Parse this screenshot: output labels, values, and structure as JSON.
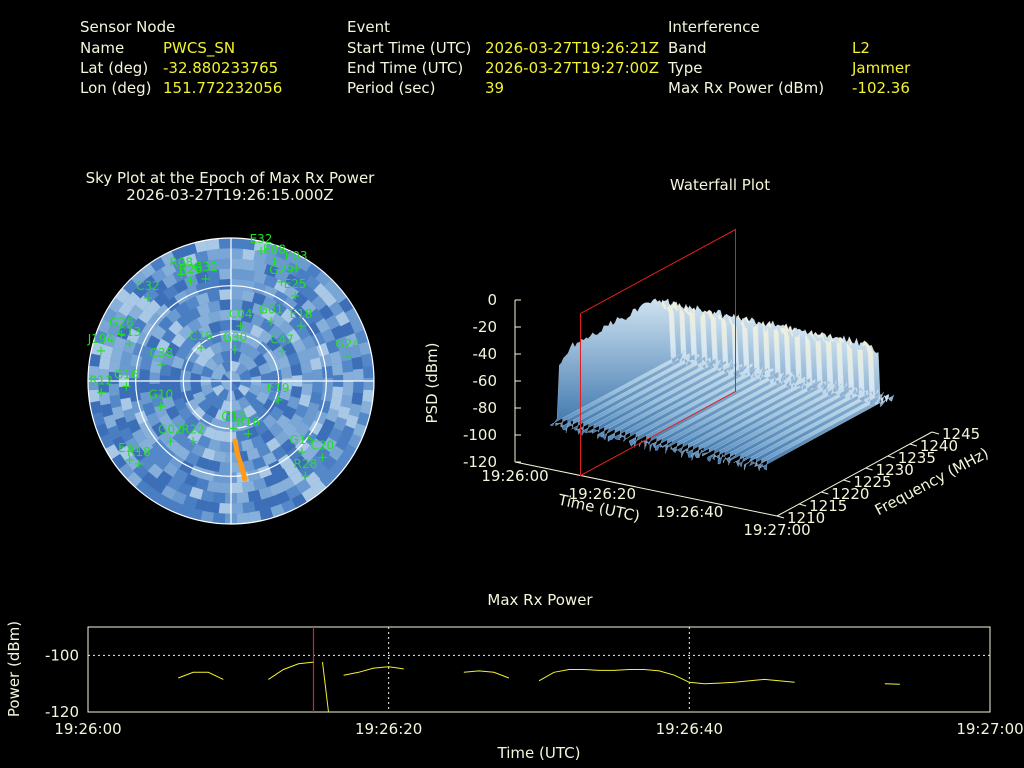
{
  "header": {
    "sensor": {
      "title": "Sensor Node",
      "name_label": "Name",
      "name_value": "PWCS_SN",
      "lat_label": "Lat (deg)",
      "lat_value": "-32.880233765",
      "lon_label": "Lon (deg)",
      "lon_value": "151.772232056"
    },
    "event": {
      "title": "Event",
      "start_label": "Start Time (UTC)",
      "start_value": "2026-03-27T19:26:21Z",
      "end_label": "End Time (UTC)",
      "end_value": "2026-03-27T19:27:00Z",
      "period_label": "Period (sec)",
      "period_value": "39"
    },
    "interference": {
      "title": "Interference",
      "band_label": "Band",
      "band_value": "L2",
      "type_label": "Type",
      "type_value": "Jammer",
      "power_label": "Max Rx Power (dBm)",
      "power_value": "-102.36"
    }
  },
  "colors": {
    "label": "#f5f5dc",
    "value": "#f2f230",
    "satellite": "#22e022",
    "track": "#ff9a1a",
    "marker": "#e02020",
    "power_line": "#f2f230"
  },
  "chart_data": [
    {
      "type": "scatter",
      "title": "Sky Plot at the Epoch of Max Rx Power",
      "subtitle": "2026-03-27T19:26:15.000Z",
      "grid": true,
      "satellites": [
        {
          "id": "E32",
          "az": 13,
          "el": 6
        },
        {
          "id": "E08",
          "az": 20,
          "el": 10
        },
        {
          "id": "E03",
          "az": 30,
          "el": 8
        },
        {
          "id": "G29",
          "az": 27,
          "el": 20
        },
        {
          "id": "E25",
          "az": 37,
          "el": 23
        },
        {
          "id": "G24",
          "az": 78,
          "el": 15
        },
        {
          "id": "G01",
          "az": 34,
          "el": 45
        },
        {
          "id": "E18",
          "az": 52,
          "el": 34
        },
        {
          "id": "C47",
          "az": 60,
          "el": 53
        },
        {
          "id": "R08",
          "az": 335,
          "el": 16
        },
        {
          "id": "R26",
          "az": 338,
          "el": 22
        },
        {
          "id": "G32",
          "az": 346,
          "el": 24
        },
        {
          "id": "C32",
          "az": 315,
          "el": 16
        },
        {
          "id": "G26",
          "az": 293,
          "el": 15
        },
        {
          "id": "C13",
          "az": 290,
          "el": 22
        },
        {
          "id": "J194",
          "az": 283,
          "el": 6
        },
        {
          "id": "C38",
          "az": 283,
          "el": 45
        },
        {
          "id": "G16",
          "az": 267,
          "el": 24
        },
        {
          "id": "R12",
          "az": 265,
          "el": 8
        },
        {
          "id": "G10",
          "az": 250,
          "el": 43
        },
        {
          "id": "G02",
          "az": 225,
          "el": 36
        },
        {
          "id": "R22",
          "az": 212,
          "el": 45
        },
        {
          "id": "G13",
          "az": 177,
          "el": 60
        },
        {
          "id": "R16",
          "az": 162,
          "el": 55
        },
        {
          "id": "G15",
          "az": 135,
          "el": 27
        },
        {
          "id": "C20",
          "az": 130,
          "el": 15
        },
        {
          "id": "R28",
          "az": 142,
          "el": 14
        },
        {
          "id": "R18",
          "az": 228,
          "el": 12
        },
        {
          "id": "E31",
          "az": 232,
          "el": 9
        },
        {
          "id": "C04",
          "az": 10,
          "el": 55
        },
        {
          "id": "E19",
          "az": 112,
          "el": 58
        },
        {
          "id": "G30",
          "az": 7,
          "el": 70
        },
        {
          "id": "C19",
          "az": 318,
          "el": 62
        }
      ],
      "track": [
        {
          "az": 176,
          "el": 52
        },
        {
          "az": 175,
          "el": 44
        },
        {
          "az": 173,
          "el": 36
        },
        {
          "az": 172,
          "el": 28
        }
      ]
    },
    {
      "type": "area",
      "title": "Waterfall Plot",
      "xlabel": "Time (UTC)",
      "ylabel": "Frequency (MHz)",
      "zlabel": "PSD (dBm)",
      "x_ticks": [
        "19:26:00",
        "19:26:20",
        "19:26:40",
        "19:27:00"
      ],
      "y_ticks": [
        "1210",
        "1215",
        "1220",
        "1225",
        "1230",
        "1235",
        "1240",
        "1245"
      ],
      "z_ticks": [
        "0",
        "-20",
        "-40",
        "-60",
        "-80",
        "-100",
        "-120"
      ],
      "zlim": [
        -120,
        0
      ],
      "freq_range": [
        1210,
        1245
      ],
      "jam_band": [
        1215,
        1240
      ],
      "jam_level": -45,
      "noise_floor": -100,
      "marker_time": "19:26:15"
    },
    {
      "type": "line",
      "title": "Max Rx Power",
      "xlabel": "Time (UTC)",
      "ylabel": "Power (dBm)",
      "ylim": [
        -120,
        -90
      ],
      "y_ticks": [
        "-100",
        "-120"
      ],
      "x_ticks": [
        "19:26:00",
        "19:26:20",
        "19:26:40",
        "19:27:00"
      ],
      "xlim_sec": [
        0,
        60
      ],
      "grid": true,
      "marker_sec": 15,
      "segments": [
        [
          [
            6,
            -108
          ],
          [
            7,
            -106
          ],
          [
            8,
            -106
          ],
          [
            9,
            -108.5
          ]
        ],
        [
          [
            12,
            -108.5
          ],
          [
            13,
            -105
          ],
          [
            14,
            -103
          ],
          [
            15,
            -102.4
          ]
        ],
        [
          [
            15.6,
            -102.4
          ],
          [
            16,
            -120
          ]
        ],
        [
          [
            17,
            -107
          ],
          [
            18,
            -106
          ],
          [
            19,
            -104.5
          ],
          [
            20,
            -104
          ],
          [
            21,
            -104.8
          ]
        ],
        [
          [
            25,
            -106
          ],
          [
            26,
            -105.5
          ],
          [
            27,
            -106
          ],
          [
            28,
            -108
          ]
        ],
        [
          [
            30,
            -109
          ],
          [
            31,
            -106
          ],
          [
            32,
            -105
          ],
          [
            33,
            -105
          ],
          [
            34,
            -105.3
          ],
          [
            35,
            -105.3
          ],
          [
            36,
            -105
          ],
          [
            37,
            -105
          ],
          [
            38,
            -105.5
          ],
          [
            39,
            -107
          ],
          [
            40,
            -109.5
          ],
          [
            41,
            -110
          ],
          [
            42,
            -109.8
          ],
          [
            43,
            -109.5
          ],
          [
            45,
            -108.5
          ],
          [
            47,
            -109.5
          ]
        ],
        [
          [
            53,
            -110
          ],
          [
            54,
            -110.2
          ]
        ]
      ]
    }
  ]
}
